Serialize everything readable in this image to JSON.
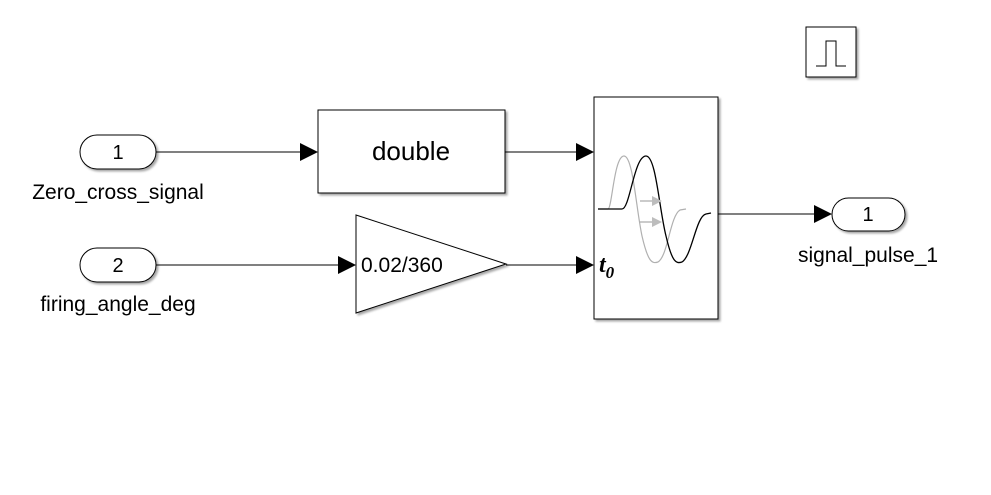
{
  "diagram": {
    "inports": [
      {
        "number": "1",
        "name": "Zero_cross_signal"
      },
      {
        "number": "2",
        "name": "firing_angle_deg"
      }
    ],
    "outports": [
      {
        "number": "1",
        "name": "signal_pulse_1"
      }
    ],
    "convert_block": {
      "label": "double"
    },
    "gain_block": {
      "label": "0.02/360"
    },
    "delay_block": {
      "port_label": "t",
      "port_label_sub": "0"
    },
    "pulse_icon": "pulse-generator-icon"
  }
}
